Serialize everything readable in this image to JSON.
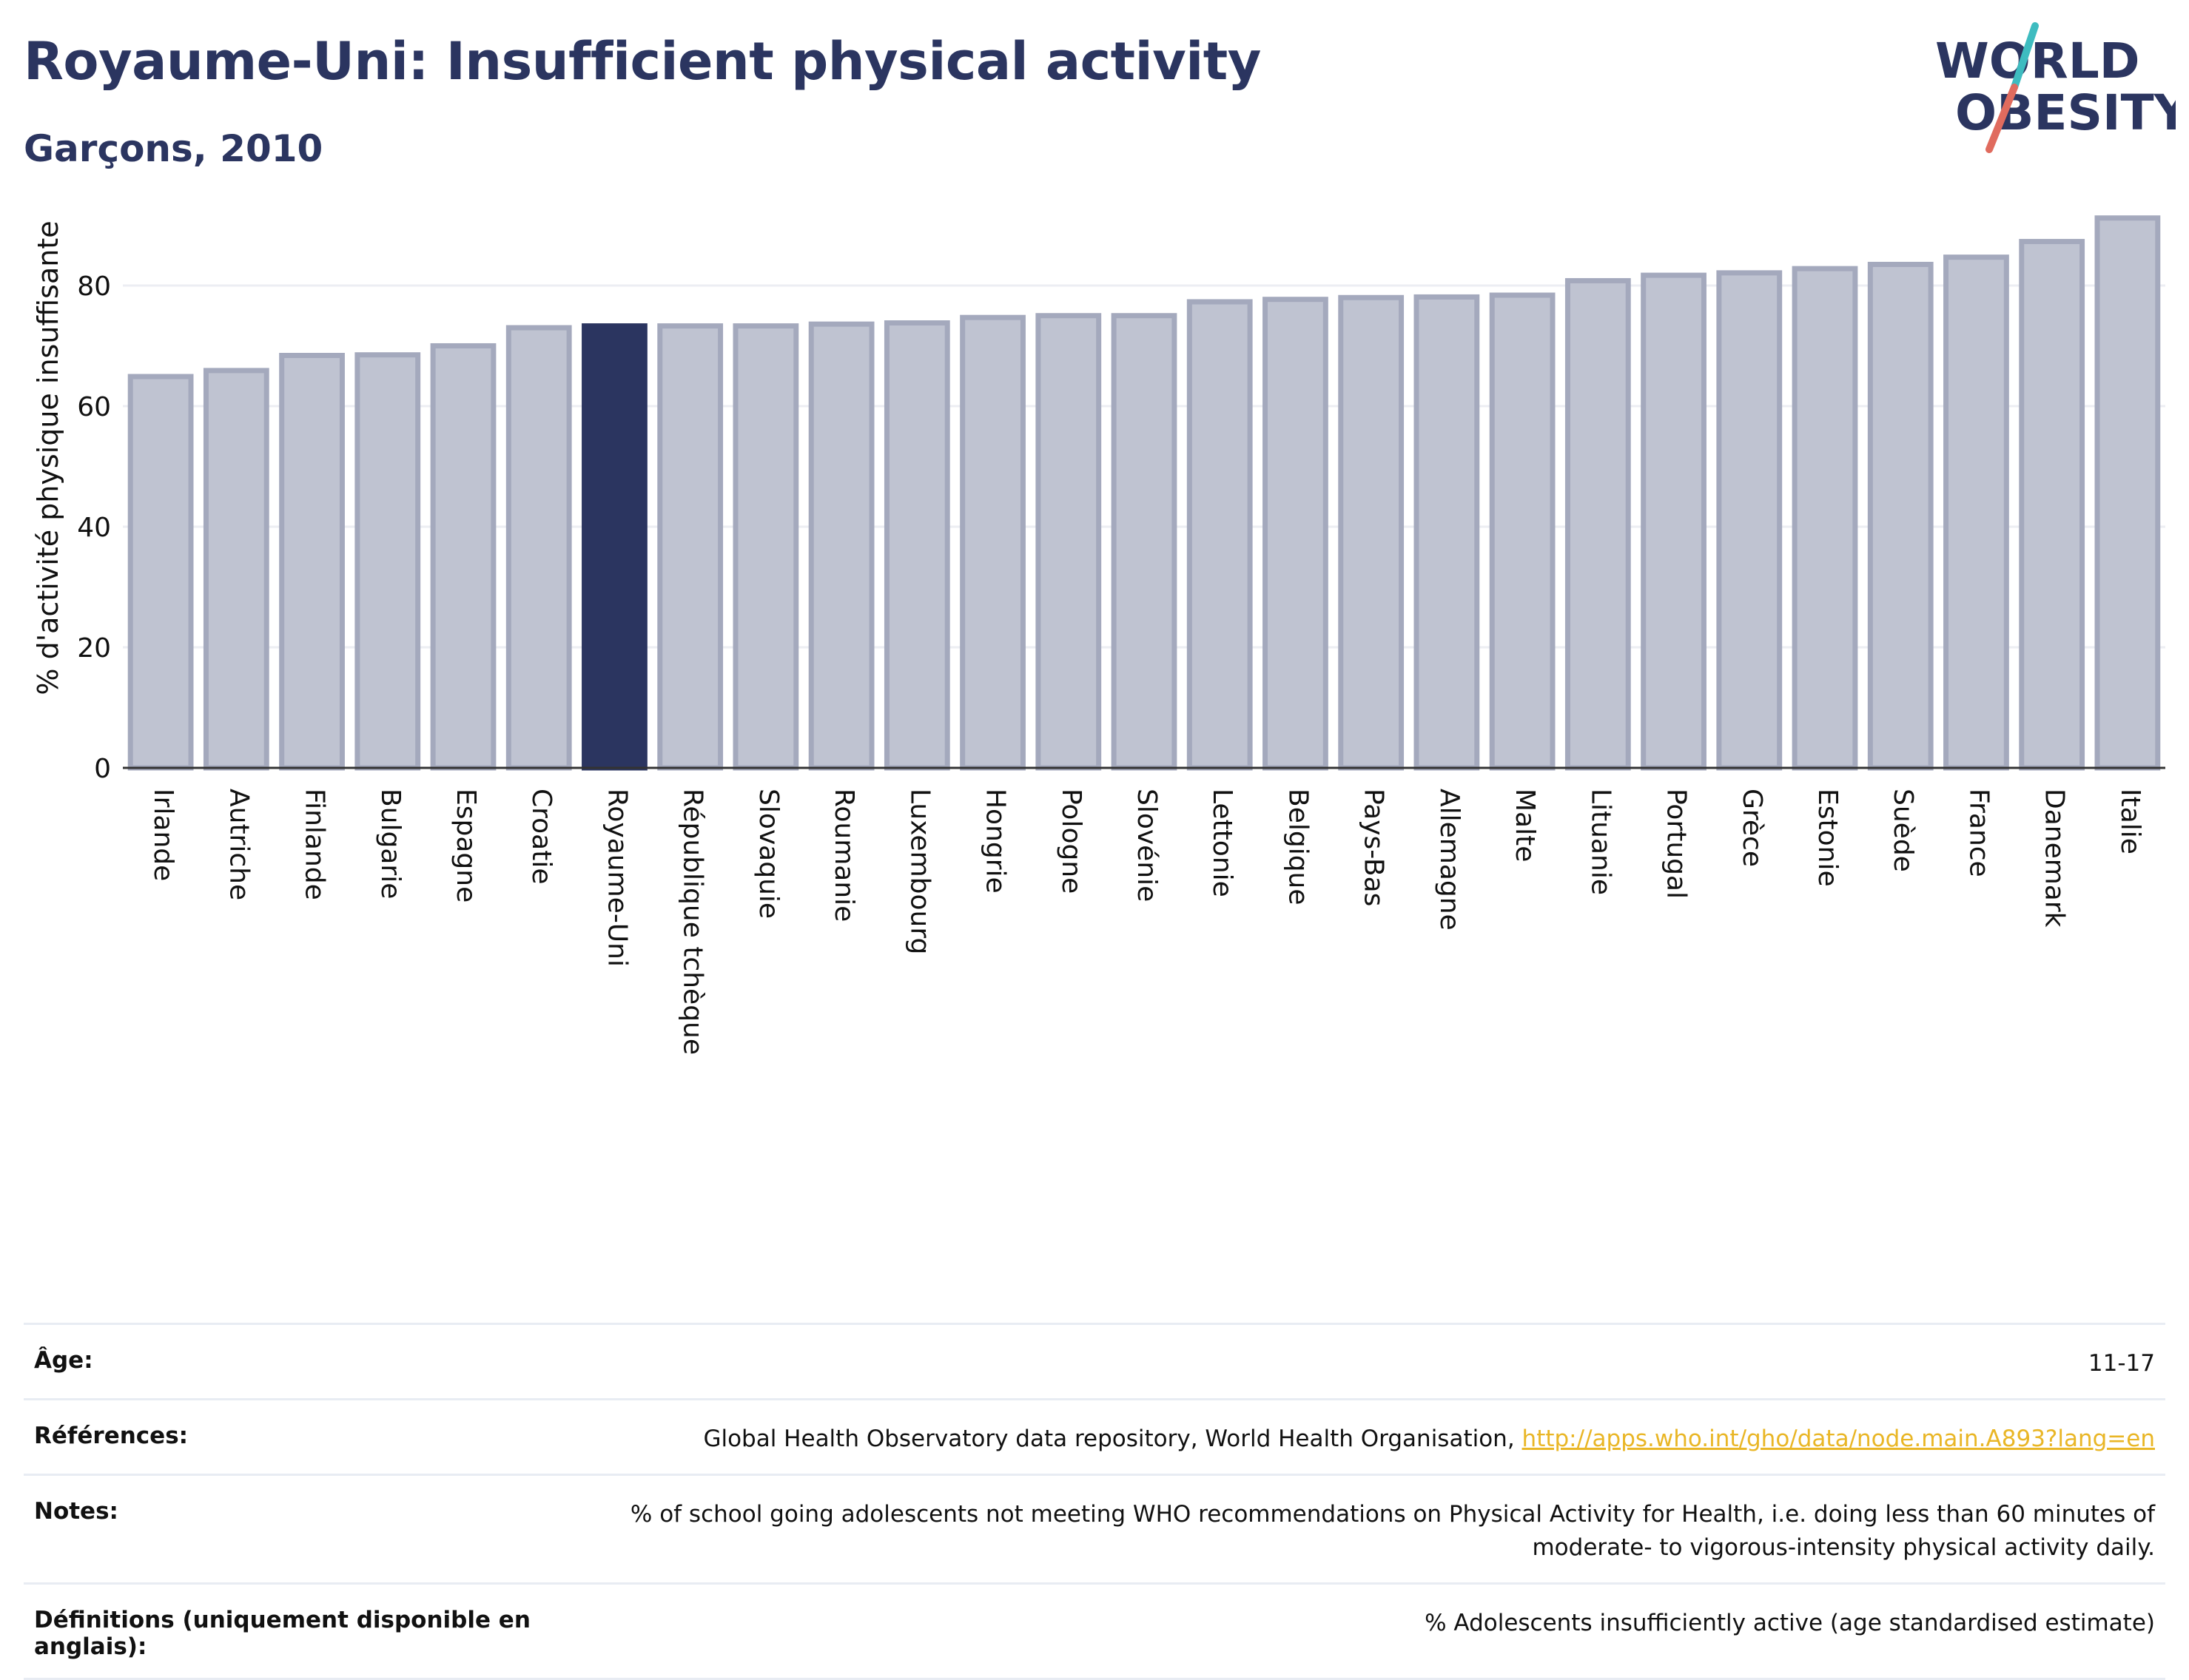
{
  "header": {
    "title": "Royaume-Uni: Insufficient physical activity",
    "subtitle": "Garçons, 2010"
  },
  "logo": {
    "line1": "WORLD",
    "line2": "OBESITY"
  },
  "colors": {
    "brand": "#2b3560",
    "bar": "#bfc3d1",
    "bar_border": "#a4a9bd",
    "highlight": "#2b3560",
    "link": "#e9b626",
    "accent_teal": "#3ebcc0",
    "accent_coral": "#e06b5e"
  },
  "chart_data": {
    "type": "bar",
    "title": "Royaume-Uni: Insufficient physical activity",
    "subtitle": "Garçons, 2010",
    "ylabel": "% d'activité physique insuffisante",
    "xlabel": "",
    "ylim": [
      0,
      93
    ],
    "yticks": [
      0,
      20,
      40,
      60,
      80
    ],
    "grid": true,
    "highlight": "Royaume-Uni",
    "categories": [
      "Irlande",
      "Autriche",
      "Finlande",
      "Bulgarie",
      "Espagne",
      "Croatie",
      "Royaume-Uni",
      "République tchèque",
      "Slovaquie",
      "Roumanie",
      "Luxembourg",
      "Hongrie",
      "Pologne",
      "Slovénie",
      "Lettonie",
      "Belgique",
      "Pays-Bas",
      "Allemagne",
      "Malte",
      "Lituanie",
      "Portugal",
      "Grèce",
      "Estonie",
      "Suède",
      "France",
      "Danemark",
      "Italie"
    ],
    "values": [
      64.9,
      65.9,
      68.4,
      68.5,
      70.0,
      73.0,
      73.3,
      73.3,
      73.3,
      73.6,
      73.8,
      74.7,
      75.0,
      75.0,
      77.3,
      77.7,
      78.0,
      78.1,
      78.4,
      80.8,
      81.7,
      82.1,
      82.8,
      83.5,
      84.7,
      87.3,
      91.2
    ]
  },
  "meta": [
    {
      "key": "Âge:",
      "value": "11-17"
    },
    {
      "key": "Références:",
      "value": "Global Health Observatory data repository, World Health Organisation, ",
      "link": "http://apps.who.int/gho/data/node.main.A893?lang=en"
    },
    {
      "key": "Notes:",
      "value": "% of school going adolescents not meeting WHO recommendations on Physical Activity for Health, i.e. doing less than 60 minutes of moderate- to vigorous-intensity physical activity daily."
    },
    {
      "key": "Définitions (uniquement disponible en anglais):",
      "value": "% Adolescents insufficiently active (age standardised estimate)"
    }
  ]
}
